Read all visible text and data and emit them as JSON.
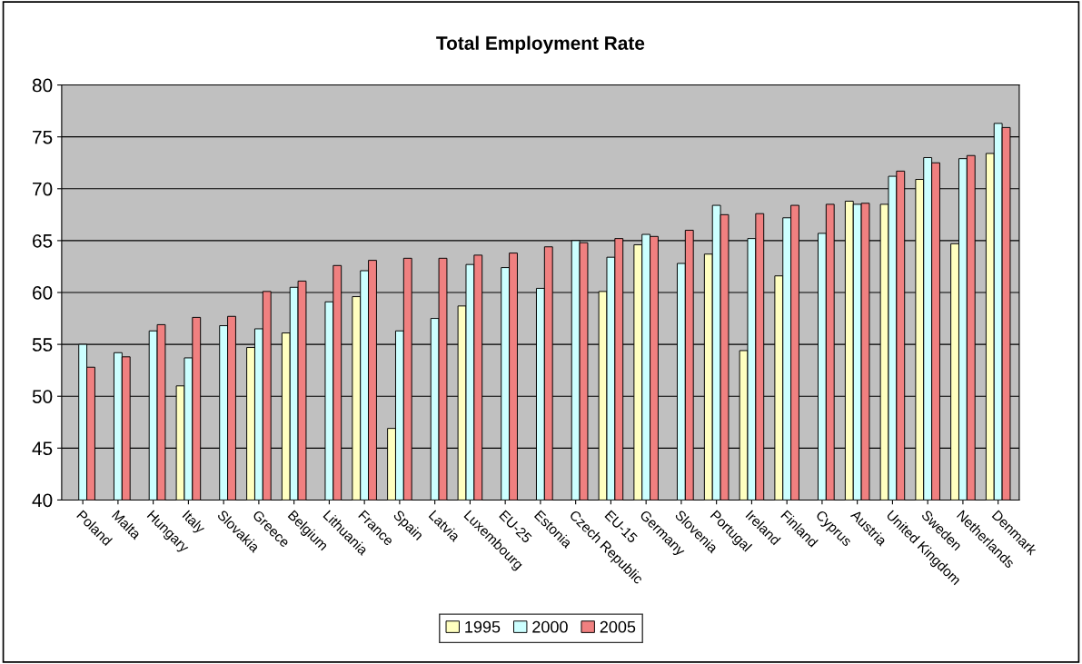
{
  "chart_data": {
    "type": "bar",
    "title": "Total Employment Rate",
    "categories": [
      "Poland",
      "Malta",
      "Hungary",
      "Italy",
      "Slovakia",
      "Greece",
      "Belgium",
      "Lithuania",
      "France",
      "Spain",
      "Latvia",
      "Luxembourg",
      "EU-25",
      "Estonia",
      "Czech Republic",
      "EU-15",
      "Germany",
      "Slovenia",
      "Portugal",
      "Ireland",
      "Finland",
      "Cyprus",
      "Austria",
      "United Kingdom",
      "Sweden",
      "Netherlands",
      "Denmark"
    ],
    "series": [
      {
        "name": "1995",
        "color": "#ffffc0",
        "values": [
          null,
          null,
          null,
          51.0,
          null,
          54.7,
          56.1,
          null,
          59.6,
          46.9,
          null,
          58.7,
          null,
          null,
          null,
          60.1,
          64.6,
          null,
          63.7,
          54.4,
          61.6,
          null,
          68.8,
          68.5,
          70.9,
          64.7,
          73.4
        ]
      },
      {
        "name": "2000",
        "color": "#ccffff",
        "values": [
          55.0,
          54.2,
          56.3,
          53.7,
          56.8,
          56.5,
          60.5,
          59.1,
          62.1,
          56.3,
          57.5,
          62.7,
          62.4,
          60.4,
          65.0,
          63.4,
          65.6,
          62.8,
          68.4,
          65.2,
          67.2,
          65.7,
          68.5,
          71.2,
          73.0,
          72.9,
          76.3
        ]
      },
      {
        "name": "2005",
        "color": "#f08080",
        "values": [
          52.8,
          53.8,
          56.9,
          57.6,
          57.7,
          60.1,
          61.1,
          62.6,
          63.1,
          63.3,
          63.3,
          63.6,
          63.8,
          64.4,
          64.8,
          65.2,
          65.4,
          66.0,
          67.5,
          67.6,
          68.4,
          68.5,
          68.6,
          71.7,
          72.5,
          73.2,
          75.9
        ]
      }
    ],
    "ylim": [
      40,
      80
    ],
    "yticks": [
      40,
      45,
      50,
      55,
      60,
      65,
      70,
      75,
      80
    ],
    "grid": "y",
    "legend": "bottom"
  }
}
